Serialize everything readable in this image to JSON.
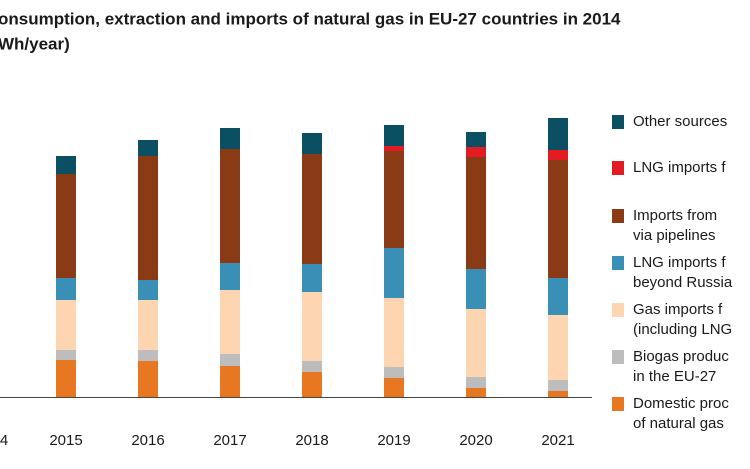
{
  "chart_data": {
    "type": "stacked-bar",
    "title": [
      "onsumption, extraction and imports of natural gas in EU-27 countries in 2014",
      "Wh/year)"
    ],
    "categories": [
      "4",
      "2015",
      "2016",
      "2017",
      "2018",
      "2019",
      "2020",
      "2021"
    ],
    "ylim": [
      0,
      300
    ],
    "series": [
      {
        "name": [
          "Domestic proc",
          "of natural gas"
        ],
        "color": "#e87722",
        "values": [
          null,
          37,
          36,
          31,
          25,
          19,
          9,
          6
        ]
      },
      {
        "name": [
          "Biogas produc",
          "in the EU-27"
        ],
        "color": "#bdbdbd",
        "values": [
          null,
          10,
          11,
          12,
          11,
          11,
          11,
          11
        ]
      },
      {
        "name": [
          "Gas imports f",
          "(including LNG"
        ],
        "color": "#fdd5b1",
        "values": [
          null,
          50,
          50,
          64,
          69,
          69,
          68,
          65
        ]
      },
      {
        "name": [
          "LNG imports f",
          "beyond Russia"
        ],
        "color": "#3a8fb7",
        "values": [
          null,
          22,
          20,
          27,
          28,
          50,
          40,
          37
        ]
      },
      {
        "name": [
          "Imports from",
          "via pipelines"
        ],
        "color": "#8b3a16",
        "values": [
          null,
          104,
          124,
          114,
          110,
          97,
          112,
          118
        ]
      },
      {
        "name": [
          "LNG imports f"
        ],
        "color": "#e31b23",
        "values": [
          null,
          0,
          0,
          0,
          0,
          5,
          10,
          10
        ]
      },
      {
        "name": [
          "Other sources"
        ],
        "color": "#0b4f63",
        "values": [
          null,
          18,
          16,
          21,
          21,
          21,
          15,
          32
        ]
      }
    ]
  }
}
